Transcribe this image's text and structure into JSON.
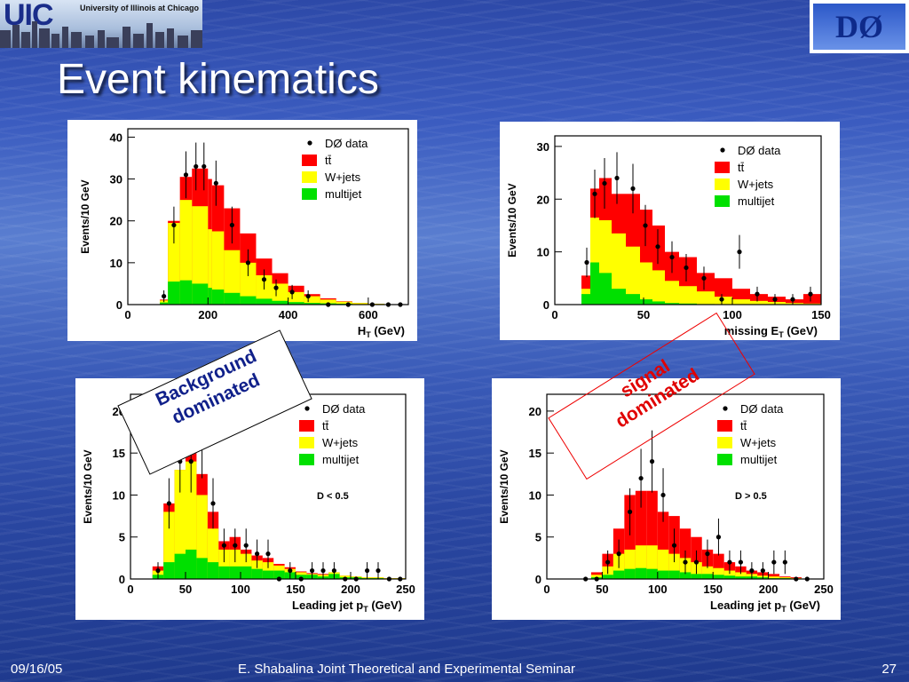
{
  "logos": {
    "uic_letters": "UIC",
    "uic_name": "University of Illinois at Chicago",
    "d0_text": "DØ"
  },
  "slide": {
    "title": "Event kinematics",
    "footer": {
      "date": "09/16/05",
      "seminar": "E. Shabalina Joint Theoretical and Experimental Seminar",
      "page": "27"
    }
  },
  "annotations": {
    "background": [
      "Background",
      "dominated"
    ],
    "signal": [
      "signal",
      "dominated"
    ]
  },
  "colors": {
    "ttbar": "#ff0000",
    "wjets": "#ffff00",
    "multijet": "#00e000",
    "data": "#000000",
    "signal_text": "#e00000",
    "background_text": "#10208a"
  },
  "chart_data": [
    {
      "id": "ht",
      "type": "bar",
      "ylabel": "Events/10 GeV",
      "xlabel": "H",
      "xlabel_sub": "T",
      "xlabel_suffix": " (GeV)",
      "xlim": [
        0,
        700
      ],
      "ylim": [
        0,
        42
      ],
      "xticks": [
        0,
        200,
        400,
        600
      ],
      "yticks": [
        0,
        10,
        20,
        30,
        40
      ],
      "legend": [
        "DØ data",
        "tt̄",
        "W+jets",
        "multijet"
      ],
      "note": "",
      "bin_edges": [
        80,
        100,
        130,
        160,
        200,
        210,
        240,
        280,
        320,
        360,
        400,
        440,
        480,
        520,
        560,
        600,
        640,
        680
      ],
      "multijet": [
        0.5,
        5.5,
        5.8,
        5,
        4,
        3.6,
        2.8,
        2,
        1.4,
        0.9,
        0.6,
        0.4,
        0.3,
        0.2,
        0.1,
        0.1,
        0.05
      ],
      "wjets": [
        1.0,
        19.5,
        25.0,
        23.5,
        18,
        17.5,
        13,
        10,
        7,
        5,
        3,
        2,
        1.2,
        0.7,
        0.4,
        0.2,
        0.1
      ],
      "ttbar": [
        1.2,
        20.0,
        30.5,
        32.5,
        30,
        28.5,
        23,
        17,
        11,
        7.5,
        4.5,
        2.5,
        1.5,
        0.8,
        0.4,
        0.2,
        0.1
      ],
      "data_x": [
        90,
        115,
        145,
        170,
        190,
        220,
        260,
        300,
        340,
        370,
        410,
        450,
        500,
        550,
        610,
        650,
        680
      ],
      "data_y": [
        2,
        19,
        31,
        33,
        33,
        29,
        19,
        10,
        6,
        4,
        3,
        2,
        0,
        0,
        0,
        0,
        0
      ],
      "data_err": [
        1.4,
        4.4,
        5.6,
        5.7,
        5.7,
        5.4,
        4.4,
        3.2,
        2.4,
        2,
        1.7,
        1.4,
        0,
        0,
        0,
        0,
        0
      ]
    },
    {
      "id": "met",
      "type": "bar",
      "ylabel": "Events/10 GeV",
      "xlabel": "missing E",
      "xlabel_sub": "T",
      "xlabel_suffix": " (GeV)",
      "xlim": [
        0,
        150
      ],
      "ylim": [
        0,
        32
      ],
      "xticks": [
        0,
        50,
        100,
        150
      ],
      "yticks": [
        0,
        10,
        20,
        30
      ],
      "legend": [
        "DØ data",
        "tt̄",
        "W+jets",
        "multijet"
      ],
      "note": "",
      "bin_edges": [
        15,
        20,
        25,
        32,
        40,
        48,
        55,
        62,
        70,
        80,
        90,
        100,
        110,
        120,
        130,
        140,
        150
      ],
      "multijet": [
        2,
        8,
        6,
        3,
        2,
        1,
        0.6,
        0.3,
        0.2,
        0.1,
        0,
        0,
        0,
        0,
        0,
        0
      ],
      "wjets": [
        3,
        16.5,
        16,
        13.5,
        11,
        8,
        6.5,
        4.5,
        3.5,
        2.5,
        1.5,
        1,
        0.7,
        0.5,
        0.3,
        0.2
      ],
      "ttbar": [
        5.5,
        22,
        24,
        21,
        21,
        18,
        15,
        10,
        9,
        6,
        5,
        3,
        2,
        1.5,
        1,
        2
      ],
      "data_x": [
        18,
        22.5,
        28,
        35,
        44,
        51,
        58,
        66,
        74,
        84,
        94,
        104,
        114,
        124,
        134,
        144
      ],
      "data_y": [
        8,
        21,
        23,
        24,
        22,
        15,
        11,
        9,
        7,
        5,
        1,
        10,
        2,
        1,
        1,
        2
      ],
      "data_err": [
        2.8,
        4.6,
        4.8,
        4.9,
        4.7,
        3.9,
        3.3,
        3,
        2.6,
        2.2,
        1,
        3.2,
        1.4,
        1,
        1,
        1.4
      ]
    },
    {
      "id": "jet_low",
      "type": "bar",
      "ylabel": "Events/10 GeV",
      "xlabel": "Leading jet p",
      "xlabel_sub": "T",
      "xlabel_suffix": " (GeV)",
      "xlim": [
        0,
        250
      ],
      "ylim": [
        0,
        22
      ],
      "xticks": [
        0,
        50,
        100,
        150,
        200,
        250
      ],
      "yticks": [
        0,
        5,
        10,
        15,
        20
      ],
      "legend": [
        "DØ data",
        "tt̄",
        "W+jets",
        "multijet"
      ],
      "note": "D < 0.5",
      "bin_edges": [
        20,
        30,
        40,
        50,
        60,
        70,
        80,
        90,
        100,
        110,
        120,
        130,
        140,
        150,
        160,
        170,
        180,
        190,
        200,
        210,
        220,
        230,
        240,
        250
      ],
      "multijet": [
        0.5,
        2,
        3,
        3.5,
        2.5,
        2,
        1.5,
        1.5,
        1.5,
        1.2,
        1,
        1,
        0.8,
        0.5,
        0.5,
        0.3,
        0.6,
        0.2,
        0.2,
        0.1,
        0.1,
        0,
        0
      ],
      "wjets": [
        1,
        8,
        13,
        14,
        10,
        6,
        3.5,
        3.5,
        3,
        2.2,
        2,
        1.6,
        1.2,
        0.8,
        0.6,
        0.5,
        0.8,
        0.4,
        0.3,
        0.2,
        0.2,
        0.1,
        0.1
      ],
      "ttbar": [
        1.5,
        9,
        13,
        15.5,
        12.5,
        8,
        4.5,
        5,
        3.5,
        2.8,
        2.5,
        1.8,
        1.4,
        0.9,
        0.7,
        0.6,
        0.8,
        0.4,
        0.3,
        0.2,
        0.2,
        0.1,
        0.1
      ],
      "data_x": [
        25,
        35,
        45,
        55,
        65,
        75,
        85,
        95,
        105,
        115,
        125,
        135,
        145,
        155,
        165,
        175,
        185,
        195,
        205,
        215,
        225,
        235,
        245
      ],
      "data_y": [
        1,
        9,
        14,
        14,
        16,
        9,
        4,
        4,
        4,
        3,
        3,
        0,
        1,
        0,
        1,
        1,
        1,
        0,
        0,
        1,
        1,
        0,
        0
      ],
      "data_err": [
        1,
        3,
        3.7,
        3.7,
        4,
        3,
        2,
        2,
        2,
        1.7,
        1.7,
        0,
        1,
        0,
        1,
        1,
        1,
        0,
        0,
        1,
        1,
        0,
        0
      ]
    },
    {
      "id": "jet_high",
      "type": "bar",
      "ylabel": "Events/10 GeV",
      "xlabel": "Leading jet p",
      "xlabel_sub": "T",
      "xlabel_suffix": " (GeV)",
      "xlim": [
        0,
        250
      ],
      "ylim": [
        0,
        22
      ],
      "xticks": [
        0,
        50,
        100,
        150,
        200,
        250
      ],
      "yticks": [
        0,
        5,
        10,
        15,
        20
      ],
      "legend": [
        "DØ data",
        "tt̄",
        "W+jets",
        "multijet"
      ],
      "note": "D > 0.5",
      "bin_edges": [
        30,
        40,
        50,
        60,
        70,
        80,
        90,
        100,
        110,
        120,
        130,
        140,
        150,
        160,
        170,
        180,
        190,
        200,
        210,
        220,
        230,
        240
      ],
      "multijet": [
        0,
        0.2,
        0.5,
        1,
        1.2,
        1.3,
        1.2,
        1,
        1,
        0.8,
        0.6,
        0.6,
        0.5,
        0.4,
        0.3,
        0.3,
        0.2,
        0.1,
        0.1,
        0,
        0
      ],
      "wjets": [
        0,
        0.5,
        1.5,
        3,
        3.5,
        4,
        4,
        3.5,
        3,
        2.5,
        2,
        1.5,
        1.3,
        1,
        0.8,
        0.6,
        0.4,
        0.3,
        0.2,
        0.1,
        0
      ],
      "ttbar": [
        0,
        0.8,
        3,
        6,
        10,
        10.5,
        10.5,
        8,
        7.5,
        6,
        5,
        3.5,
        3,
        2,
        1.5,
        1,
        0.8,
        0.6,
        0.3,
        0.2,
        0
      ],
      "data_x": [
        35,
        45,
        55,
        65,
        75,
        85,
        95,
        105,
        115,
        125,
        135,
        145,
        155,
        165,
        175,
        185,
        195,
        205,
        215,
        225,
        235
      ],
      "data_y": [
        0,
        0,
        2,
        3,
        8,
        12,
        14,
        10,
        4,
        2,
        2,
        3,
        5,
        2,
        2,
        1,
        1,
        2,
        2,
        0,
        0
      ],
      "data_err": [
        0,
        0,
        1.4,
        1.7,
        2.8,
        3.5,
        3.7,
        3.2,
        2,
        1.4,
        1.4,
        1.7,
        2.2,
        1.4,
        1.4,
        1,
        1,
        1.4,
        1.4,
        0,
        0
      ]
    }
  ]
}
